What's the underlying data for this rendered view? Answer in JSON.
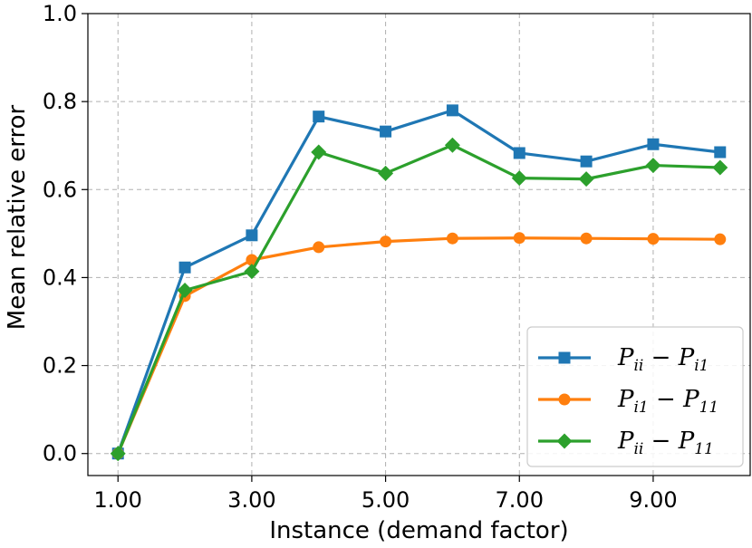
{
  "chart_data": {
    "type": "line",
    "xlabel": "Instance (demand factor)",
    "ylabel": "Mean relative error",
    "xlim": [
      0.55,
      10.45
    ],
    "ylim": [
      -0.05,
      1.0
    ],
    "x": [
      1,
      2,
      3,
      4,
      5,
      6,
      7,
      8,
      9,
      10
    ],
    "xticks": [
      1,
      3,
      5,
      7,
      9
    ],
    "xtick_labels": [
      "1.00",
      "3.00",
      "5.00",
      "7.00",
      "9.00"
    ],
    "yticks": [
      0.0,
      0.2,
      0.4,
      0.6,
      0.8,
      1.0
    ],
    "ytick_labels": [
      "0.0",
      "0.2",
      "0.4",
      "0.6",
      "0.8",
      "1.0"
    ],
    "grid": true,
    "legend_position": "lower-right",
    "series": [
      {
        "name": "P_ii − P_i1",
        "label_main": "P",
        "label_sub1": "ii",
        "label_mid": " − P",
        "label_sub2": "i1",
        "color": "#1f77b4",
        "marker": "square",
        "values": [
          0.0,
          0.423,
          0.496,
          0.766,
          0.732,
          0.78,
          0.683,
          0.664,
          0.703,
          0.685
        ]
      },
      {
        "name": "P_i1 − P_11",
        "label_main": "P",
        "label_sub1": "i1",
        "label_mid": " − P",
        "label_sub2": "11",
        "color": "#ff7f0e",
        "marker": "circle",
        "values": [
          0.0,
          0.358,
          0.44,
          0.469,
          0.482,
          0.489,
          0.49,
          0.489,
          0.488,
          0.487
        ]
      },
      {
        "name": "P_ii − P_11",
        "label_main": "P",
        "label_sub1": "ii",
        "label_mid": " − P",
        "label_sub2": "11",
        "color": "#2ca02c",
        "marker": "diamond",
        "values": [
          0.0,
          0.371,
          0.414,
          0.685,
          0.637,
          0.701,
          0.626,
          0.624,
          0.655,
          0.65
        ]
      }
    ]
  }
}
